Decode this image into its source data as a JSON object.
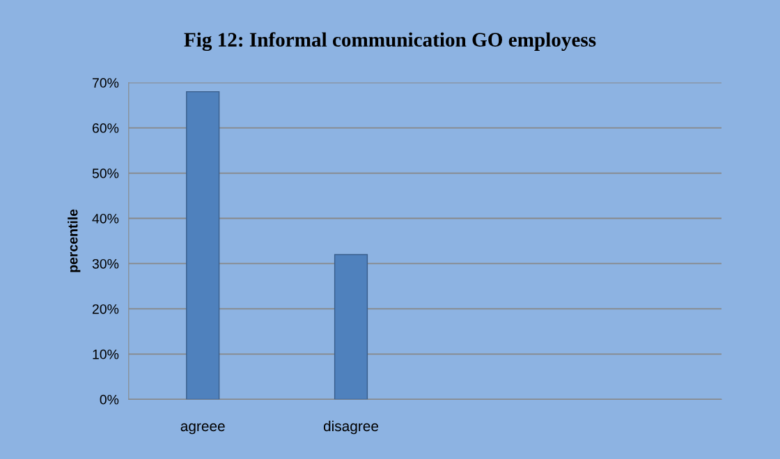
{
  "chart_data": {
    "type": "bar",
    "title": "Fig 12: Informal communication GO employess",
    "ylabel": "percentile",
    "categories": [
      "agreee",
      "disagree",
      null,
      null
    ],
    "values": [
      68,
      32,
      null,
      null
    ],
    "color": "#4f81bd",
    "ylim": [
      0,
      70
    ],
    "yticks": [
      {
        "value": 0,
        "label": "0%"
      },
      {
        "value": 10,
        "label": "10%"
      },
      {
        "value": 20,
        "label": "20%"
      },
      {
        "value": 30,
        "label": "30%"
      },
      {
        "value": 40,
        "label": "40%"
      },
      {
        "value": 50,
        "label": "50%"
      },
      {
        "value": 60,
        "label": "60%"
      },
      {
        "value": 70,
        "label": "70%"
      }
    ],
    "grid": "y",
    "legend": false
  }
}
